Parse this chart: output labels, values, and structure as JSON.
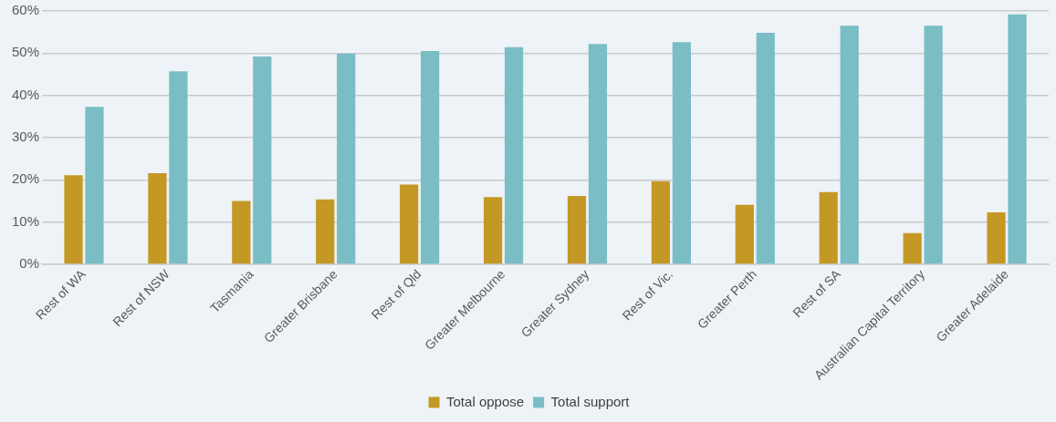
{
  "chart_data": {
    "type": "bar",
    "categories": [
      "Rest of WA",
      "Rest of NSW",
      "Tasmania",
      "Greater Brisbane",
      "Rest of Qld",
      "Greater Melbourne",
      "Greater Sydney",
      "Rest of Vic.",
      "Greater Perth",
      "Rest of SA",
      "Australian Capital Territory",
      "Greater Adelaide"
    ],
    "series": [
      {
        "name": "Total oppose",
        "color": "#c49824",
        "values": [
          21.1,
          21.6,
          15.0,
          15.4,
          18.9,
          15.9,
          16.2,
          19.7,
          14.1,
          17.1,
          7.4,
          12.3
        ]
      },
      {
        "name": "Total support",
        "color": "#7abdc5",
        "values": [
          37.3,
          45.7,
          49.2,
          49.9,
          50.5,
          51.4,
          52.2,
          52.6,
          54.8,
          56.5,
          56.5,
          59.2
        ]
      }
    ],
    "ylim": [
      0,
      60
    ],
    "yticks": [
      {
        "value": 0,
        "label": "0%"
      },
      {
        "value": 10,
        "label": "10%"
      },
      {
        "value": 20,
        "label": "20%"
      },
      {
        "value": 30,
        "label": "30%"
      },
      {
        "value": 40,
        "label": "40%"
      },
      {
        "value": 50,
        "label": "50%"
      },
      {
        "value": 60,
        "label": "60%"
      }
    ],
    "grid": "y",
    "legend": "bottom"
  }
}
